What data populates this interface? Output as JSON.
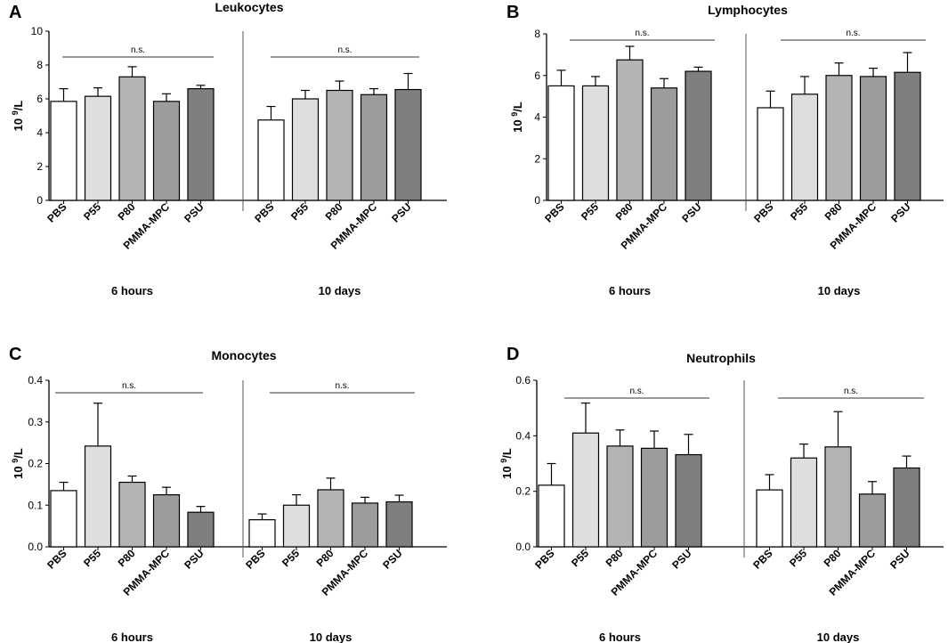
{
  "chart_data": [
    {
      "type": "bar",
      "panel": "A",
      "title": "Leukocytes",
      "ylabel_base": "10",
      "ylabel_exp": "9",
      "ylabel_unit": "/L",
      "ylim": [
        0,
        10
      ],
      "yticks": [
        "0",
        "2",
        "4",
        "6",
        "8",
        "10"
      ],
      "groups": [
        {
          "name": "6 hours",
          "categories": [
            "PBS",
            "P55",
            "P80",
            "PMMA-MPC",
            "PSU"
          ],
          "values": [
            5.85,
            6.15,
            7.3,
            5.85,
            6.6
          ],
          "errors": [
            0.75,
            0.5,
            0.6,
            0.45,
            0.2
          ],
          "significance": "n.s."
        },
        {
          "name": "10 days",
          "categories": [
            "PBS",
            "P55",
            "P80",
            "PMMA-MPC",
            "PSU"
          ],
          "values": [
            4.75,
            6.0,
            6.5,
            6.25,
            6.55
          ],
          "errors": [
            0.8,
            0.5,
            0.55,
            0.35,
            0.95
          ],
          "significance": "n.s."
        }
      ]
    },
    {
      "type": "bar",
      "panel": "B",
      "title": "Lymphocytes",
      "ylabel_base": "10",
      "ylabel_exp": "9",
      "ylabel_unit": "/L",
      "ylim": [
        0,
        8
      ],
      "yticks": [
        "0",
        "2",
        "4",
        "6",
        "8"
      ],
      "groups": [
        {
          "name": "6 hours",
          "categories": [
            "PBS",
            "P55",
            "P80",
            "PMMA-MPC",
            "PSU"
          ],
          "values": [
            5.5,
            5.5,
            6.75,
            5.4,
            6.2
          ],
          "errors": [
            0.75,
            0.45,
            0.65,
            0.45,
            0.2
          ],
          "significance": "n.s."
        },
        {
          "name": "10 days",
          "categories": [
            "PBS",
            "P55",
            "P80",
            "PMMA-MPC",
            "PSU"
          ],
          "values": [
            4.45,
            5.1,
            6.0,
            5.95,
            6.15
          ],
          "errors": [
            0.8,
            0.85,
            0.6,
            0.4,
            0.95
          ],
          "significance": "n.s."
        }
      ]
    },
    {
      "type": "bar",
      "panel": "C",
      "title": "Monocytes",
      "ylabel_base": "10",
      "ylabel_exp": "9",
      "ylabel_unit": "/L",
      "ylim": [
        0,
        0.4
      ],
      "yticks": [
        "0.0",
        "0.1",
        "0.2",
        "0.3",
        "0.4"
      ],
      "groups": [
        {
          "name": "6 hours",
          "categories": [
            "PBS",
            "P55",
            "P80",
            "PMMA-MPC",
            "PSU"
          ],
          "values": [
            0.135,
            0.242,
            0.155,
            0.125,
            0.083
          ],
          "errors": [
            0.02,
            0.103,
            0.015,
            0.018,
            0.014
          ],
          "significance": "n.s."
        },
        {
          "name": "10 days",
          "categories": [
            "PBS",
            "P55",
            "P80",
            "PMMA-MPC",
            "PSU"
          ],
          "values": [
            0.065,
            0.1,
            0.137,
            0.105,
            0.108
          ],
          "errors": [
            0.014,
            0.025,
            0.028,
            0.014,
            0.016
          ],
          "significance": "n.s."
        }
      ]
    },
    {
      "type": "bar",
      "panel": "D",
      "title": "Neutrophils",
      "ylabel_base": "10",
      "ylabel_exp": "9",
      "ylabel_unit": "/L",
      "ylim": [
        0,
        0.6
      ],
      "yticks": [
        "0.0",
        "0.2",
        "0.4",
        "0.6"
      ],
      "groups": [
        {
          "name": "6 hours",
          "categories": [
            "PBS",
            "P55",
            "P80",
            "PMMA-MPC",
            "PSU"
          ],
          "values": [
            0.222,
            0.41,
            0.363,
            0.355,
            0.332
          ],
          "errors": [
            0.078,
            0.108,
            0.058,
            0.062,
            0.073
          ],
          "significance": "n.s."
        },
        {
          "name": "10 days",
          "categories": [
            "PBS",
            "P55",
            "P80",
            "PMMA-MPC",
            "PSU"
          ],
          "values": [
            0.205,
            0.32,
            0.36,
            0.19,
            0.284
          ],
          "errors": [
            0.055,
            0.05,
            0.127,
            0.045,
            0.043
          ],
          "significance": "n.s."
        }
      ]
    }
  ],
  "colors": {
    "bar_fills": [
      "#ffffff",
      "#dedede",
      "#b4b4b4",
      "#9c9c9c",
      "#7f7f7f"
    ],
    "stroke": "#000000",
    "sig_line": "#333333"
  }
}
